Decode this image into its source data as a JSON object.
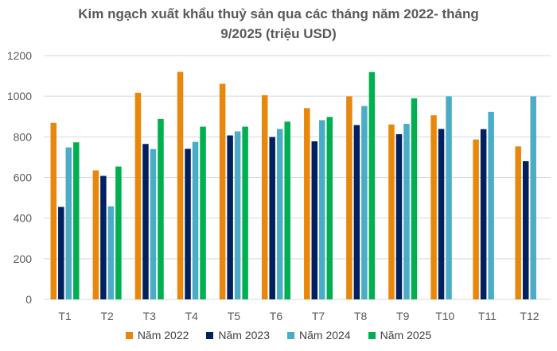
{
  "chart_data": {
    "type": "bar",
    "title_line1": "Kim ngạch xuất khẩu thuỷ sản qua các tháng năm 2022- tháng",
    "title_line2": "9/2025 (triệu USD)",
    "xlabel": "",
    "ylabel": "",
    "ylim": [
      0,
      1200
    ],
    "yticks": [
      "0",
      "200",
      "400",
      "600",
      "800",
      "1000",
      "1200"
    ],
    "grid": true,
    "legend_position": "bottom",
    "categories": [
      "T1",
      "T2",
      "T3",
      "T4",
      "T5",
      "T6",
      "T7",
      "T8",
      "T9",
      "T10",
      "T11",
      "T12"
    ],
    "series": [
      {
        "name": "Năm 2022",
        "color": "#E8870A",
        "values": [
          869,
          635,
          1017,
          1120,
          1061,
          1005,
          941,
          999,
          861,
          906,
          787,
          753
        ]
      },
      {
        "name": "Năm 2023",
        "color": "#002060",
        "values": [
          455,
          608,
          765,
          741,
          807,
          799,
          778,
          858,
          813,
          839,
          838,
          680
        ]
      },
      {
        "name": "Năm 2024",
        "color": "#4BACC6",
        "values": [
          748,
          458,
          740,
          775,
          827,
          839,
          882,
          952,
          864,
          999,
          923,
          999
        ]
      },
      {
        "name": "Năm 2025",
        "color": "#00B050",
        "values": [
          773,
          654,
          888,
          850,
          850,
          875,
          898,
          1119,
          990,
          null,
          null,
          null
        ]
      }
    ]
  }
}
